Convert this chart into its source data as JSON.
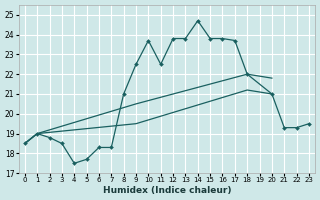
{
  "xlabel": "Humidex (Indice chaleur)",
  "xlim": [
    -0.5,
    23.5
  ],
  "ylim": [
    17,
    25.5
  ],
  "yticks": [
    17,
    18,
    19,
    20,
    21,
    22,
    23,
    24,
    25
  ],
  "xticks": [
    0,
    1,
    2,
    3,
    4,
    5,
    6,
    7,
    8,
    9,
    10,
    11,
    12,
    13,
    14,
    15,
    16,
    17,
    18,
    19,
    20,
    21,
    22,
    23
  ],
  "bg_color": "#cfe8e8",
  "grid_color": "#ffffff",
  "line_color": "#1a6060",
  "main_series": {
    "x": [
      0,
      1,
      2,
      3,
      4,
      5,
      6,
      7,
      8,
      9,
      10,
      11,
      12,
      13,
      14,
      15,
      16,
      17,
      18,
      20,
      21,
      22,
      23
    ],
    "y": [
      18.5,
      19.0,
      18.8,
      18.5,
      17.5,
      17.7,
      18.3,
      18.3,
      21.0,
      22.5,
      23.7,
      22.5,
      23.8,
      23.8,
      24.7,
      23.8,
      23.8,
      23.7,
      22.0,
      21.0,
      19.3,
      19.3,
      19.5
    ]
  },
  "line2": {
    "x": [
      0,
      1,
      9,
      18,
      20
    ],
    "y": [
      18.5,
      19.0,
      20.5,
      22.0,
      21.8
    ]
  },
  "line3": {
    "x": [
      0,
      1,
      9,
      18,
      20
    ],
    "y": [
      18.5,
      19.0,
      19.5,
      21.2,
      21.0
    ]
  }
}
